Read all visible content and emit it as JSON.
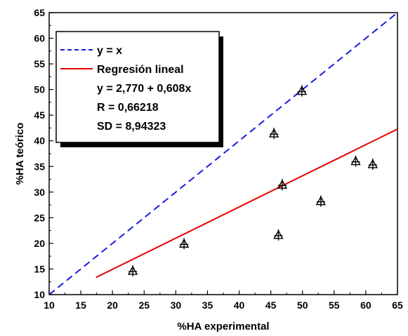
{
  "chart_data": {
    "type": "scatter",
    "xlabel": "%HA experimental",
    "ylabel": "%HA teórico",
    "xlim": [
      10,
      65
    ],
    "ylim": [
      10,
      65
    ],
    "xticks": [
      10,
      15,
      20,
      25,
      30,
      35,
      40,
      45,
      50,
      55,
      60,
      65
    ],
    "yticks": [
      10,
      15,
      20,
      25,
      30,
      35,
      40,
      45,
      50,
      55,
      60,
      65
    ],
    "points": [
      {
        "x": 23.2,
        "y": 14.5
      },
      {
        "x": 31.3,
        "y": 19.8
      },
      {
        "x": 45.5,
        "y": 41.3
      },
      {
        "x": 46.2,
        "y": 21.5
      },
      {
        "x": 46.8,
        "y": 31.3
      },
      {
        "x": 49.9,
        "y": 49.6
      },
      {
        "x": 52.9,
        "y": 28.1
      },
      {
        "x": 58.4,
        "y": 35.9
      },
      {
        "x": 61.1,
        "y": 35.3
      }
    ],
    "series": [
      {
        "name": "y = x",
        "kind": "line",
        "style": "dashed",
        "color": "#1a1ae6",
        "x": [
          10,
          65
        ],
        "y": [
          10,
          65
        ]
      },
      {
        "name": "Regresión lineal",
        "kind": "line",
        "style": "solid",
        "color": "#e60000",
        "x": [
          17.4,
          65
        ],
        "y": [
          13.35,
          42.29
        ]
      }
    ],
    "legend": {
      "position": "top-left",
      "entries": [
        "y = x",
        "Regresión lineal"
      ],
      "stats": [
        "y = 2,770 + 0,608x",
        "R = 0,66218",
        "SD = 8,94323"
      ]
    },
    "grid": false
  }
}
